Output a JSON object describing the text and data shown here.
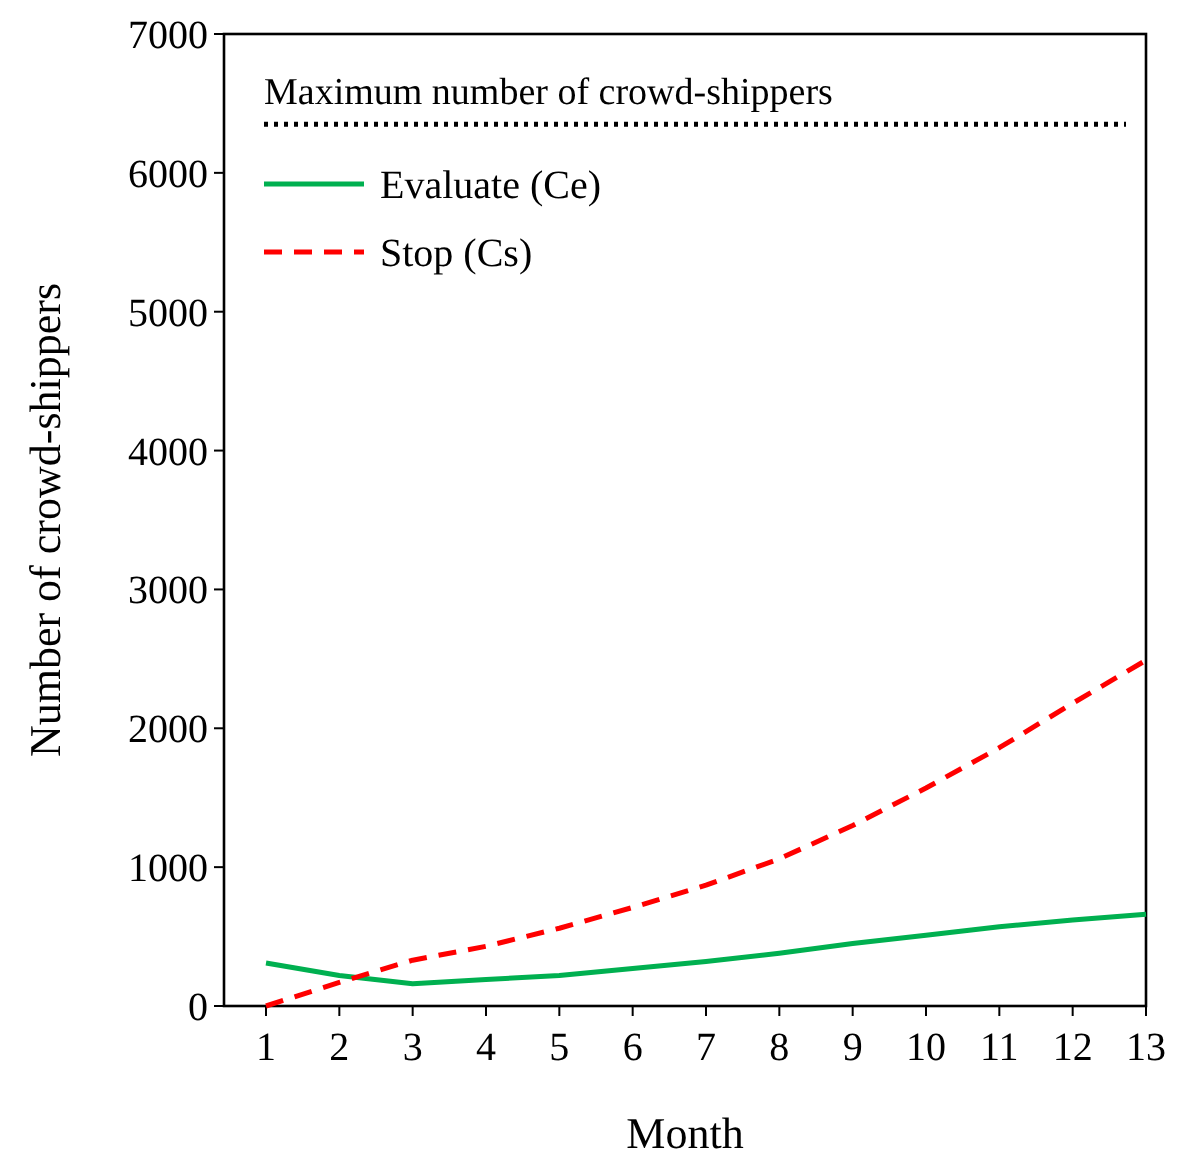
{
  "chart_data": {
    "type": "line",
    "xlabel": "Month",
    "ylabel": "Number of crowd-shippers",
    "x": [
      1,
      2,
      3,
      4,
      5,
      6,
      7,
      8,
      9,
      10,
      11,
      12,
      13
    ],
    "xlim": [
      1,
      13
    ],
    "xticks": [
      1,
      2,
      3,
      4,
      5,
      6,
      7,
      8,
      9,
      10,
      11,
      12,
      13
    ],
    "ylim": [
      0,
      7000
    ],
    "yticks": [
      0,
      1000,
      2000,
      3000,
      4000,
      5000,
      6000,
      7000
    ],
    "series": [
      {
        "name": "Evaluate (Ce)",
        "color": "#00b050",
        "line_style": "solid",
        "values": [
          310,
          220,
          160,
          190,
          220,
          270,
          320,
          380,
          450,
          510,
          570,
          620,
          660
        ]
      },
      {
        "name": "Stop (Cs)",
        "color": "#ff0000",
        "line_style": "dashed",
        "values": [
          0,
          170,
          330,
          430,
          560,
          710,
          870,
          1060,
          1300,
          1570,
          1860,
          2180,
          2490
        ]
      }
    ],
    "ref_lines": [
      {
        "axis": "y",
        "value": 6350,
        "label": "Maximum number of crowd-shippers",
        "color": "#000000",
        "line_style": "dotted"
      }
    ],
    "legend": "top left",
    "grid": false
  }
}
